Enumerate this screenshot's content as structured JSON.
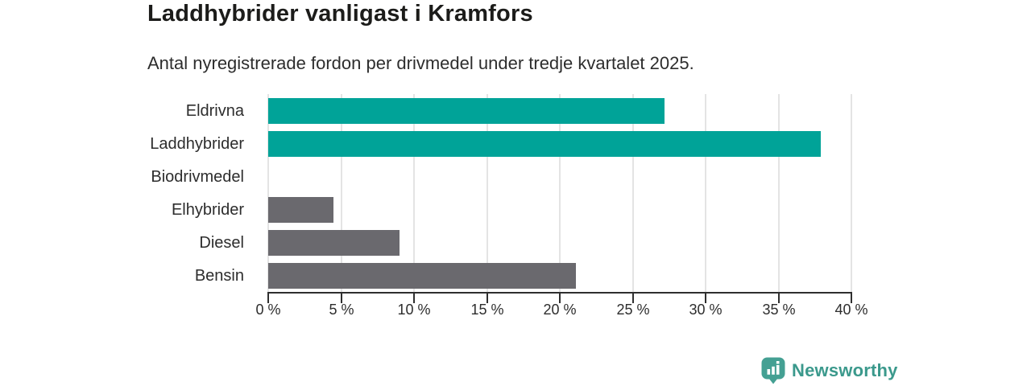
{
  "title": "Laddhybrider vanligast i Kramfors",
  "subtitle": "Antal nyregistrerade fordon per drivmedel under tredje kvartalet 2025.",
  "chart_data": {
    "type": "bar",
    "orientation": "horizontal",
    "title": "Laddhybrider vanligast i Kramfors",
    "subtitle": "Antal nyregistrerade fordon per drivmedel under tredje kvartalet 2025.",
    "categories": [
      "Eldrivna",
      "Laddhybrider",
      "Biodrivmedel",
      "Elhybrider",
      "Diesel",
      "Bensin"
    ],
    "values": [
      27.2,
      37.9,
      0,
      4.5,
      9.0,
      21.1
    ],
    "unit": "%",
    "bar_colors": [
      "#00a398",
      "#00a398",
      "#6a696e",
      "#6a696e",
      "#6a696e",
      "#6a696e"
    ],
    "xlim": [
      0,
      40
    ],
    "x_tick_labels": [
      "0 %",
      "5 %",
      "10 %",
      "15 %",
      "20 %",
      "25 %",
      "30 %",
      "35 %",
      "40 %"
    ],
    "grid": true,
    "legend": "none"
  },
  "colors": {
    "highlight_bar": "#00a398",
    "default_bar": "#6a696e",
    "gridline": "#e4e4e4",
    "axis": "#2f2f2f",
    "logo": "#44a093",
    "logo_text": "#3b998c"
  },
  "branding": {
    "logo_text": "Newsworthy",
    "logo_icon": "bar-chart-marker-icon"
  }
}
